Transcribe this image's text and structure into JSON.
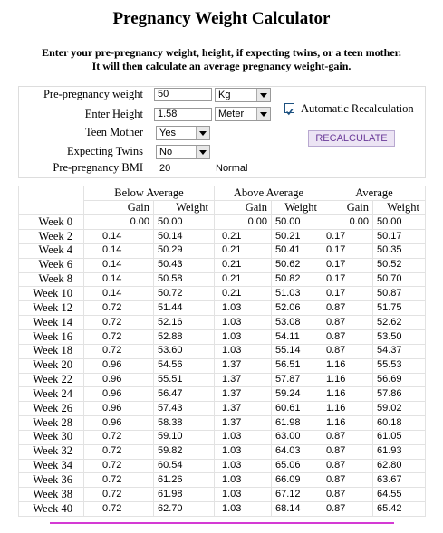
{
  "header": {
    "title": "Pregnancy Weight Calculator",
    "intro": [
      "Enter your pre-pregnancy weight, height, if expecting twins, or a teen mother.",
      "It will then calculate an average pregnancy weight-gain."
    ]
  },
  "form": {
    "weight": {
      "label": "Pre-pregnancy weight",
      "value": "50",
      "unit": "Kg"
    },
    "height": {
      "label": "Enter Height",
      "value": "1.58",
      "unit": "Meter"
    },
    "teen": {
      "label": "Teen Mother",
      "value": "Yes"
    },
    "twins": {
      "label": "Expecting Twins",
      "value": "No"
    },
    "bmi": {
      "label": "Pre-pregnancy BMI",
      "value": "20",
      "category": "Normal"
    },
    "auto_recalc": {
      "label": "Automatic Recalculation",
      "checked": true
    },
    "button": "RECALCULATE"
  },
  "table": {
    "groups": [
      "Below Average",
      "Above Average",
      "Average"
    ],
    "columns": [
      "Gain",
      "Weight"
    ],
    "rows": [
      [
        "Week 0",
        "0.00",
        "50.00",
        "0.00",
        "50.00",
        "0.00",
        "50.00"
      ],
      [
        "Week 2",
        "0.14",
        "50.14",
        "0.21",
        "50.21",
        "0.17",
        "50.17"
      ],
      [
        "Week 4",
        "0.14",
        "50.29",
        "0.21",
        "50.41",
        "0.17",
        "50.35"
      ],
      [
        "Week 6",
        "0.14",
        "50.43",
        "0.21",
        "50.62",
        "0.17",
        "50.52"
      ],
      [
        "Week 8",
        "0.14",
        "50.58",
        "0.21",
        "50.82",
        "0.17",
        "50.70"
      ],
      [
        "Week 10",
        "0.14",
        "50.72",
        "0.21",
        "51.03",
        "0.17",
        "50.87"
      ],
      [
        "Week 12",
        "0.72",
        "51.44",
        "1.03",
        "52.06",
        "0.87",
        "51.75"
      ],
      [
        "Week 14",
        "0.72",
        "52.16",
        "1.03",
        "53.08",
        "0.87",
        "52.62"
      ],
      [
        "Week 16",
        "0.72",
        "52.88",
        "1.03",
        "54.11",
        "0.87",
        "53.50"
      ],
      [
        "Week 18",
        "0.72",
        "53.60",
        "1.03",
        "55.14",
        "0.87",
        "54.37"
      ],
      [
        "Week 20",
        "0.96",
        "54.56",
        "1.37",
        "56.51",
        "1.16",
        "55.53"
      ],
      [
        "Week 22",
        "0.96",
        "55.51",
        "1.37",
        "57.87",
        "1.16",
        "56.69"
      ],
      [
        "Week 24",
        "0.96",
        "56.47",
        "1.37",
        "59.24",
        "1.16",
        "57.86"
      ],
      [
        "Week 26",
        "0.96",
        "57.43",
        "1.37",
        "60.61",
        "1.16",
        "59.02"
      ],
      [
        "Week 28",
        "0.96",
        "58.38",
        "1.37",
        "61.98",
        "1.16",
        "60.18"
      ],
      [
        "Week 30",
        "0.72",
        "59.10",
        "1.03",
        "63.00",
        "0.87",
        "61.05"
      ],
      [
        "Week 32",
        "0.72",
        "59.82",
        "1.03",
        "64.03",
        "0.87",
        "61.93"
      ],
      [
        "Week 34",
        "0.72",
        "60.54",
        "1.03",
        "65.06",
        "0.87",
        "62.80"
      ],
      [
        "Week 36",
        "0.72",
        "61.26",
        "1.03",
        "66.09",
        "0.87",
        "63.67"
      ],
      [
        "Week 38",
        "0.72",
        "61.98",
        "1.03",
        "67.12",
        "0.87",
        "64.55"
      ],
      [
        "Week 40",
        "0.72",
        "62.70",
        "1.03",
        "68.14",
        "0.87",
        "65.42"
      ]
    ]
  }
}
